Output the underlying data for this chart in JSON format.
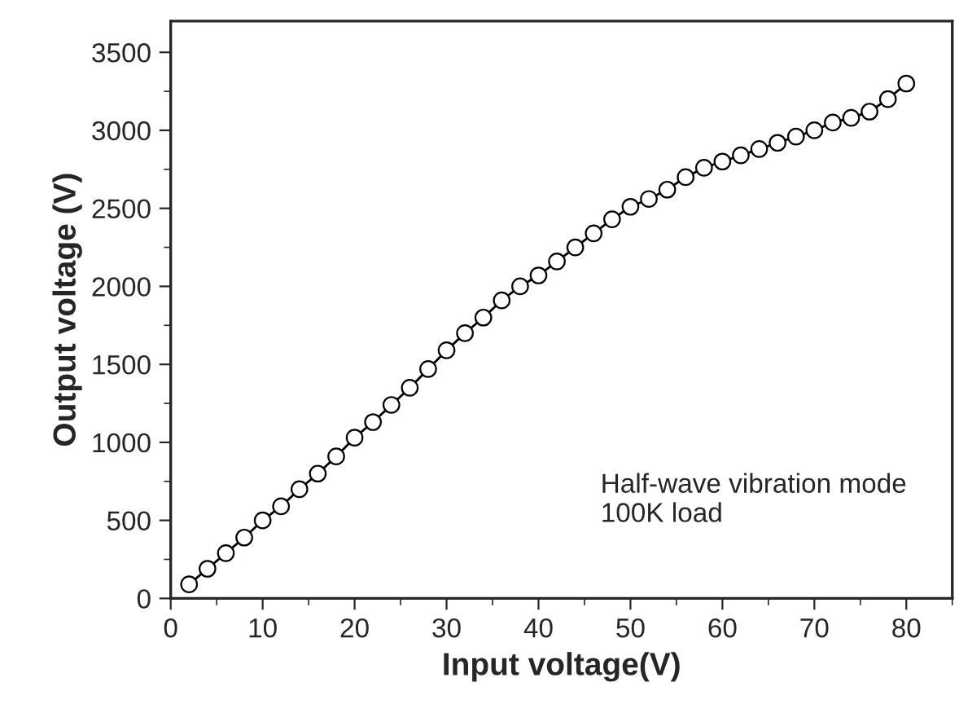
{
  "chart_data": {
    "type": "line",
    "xlabel": "Input voltage(V)",
    "ylabel": "Output voltage (V)",
    "x": [
      2,
      4,
      6,
      8,
      10,
      12,
      14,
      16,
      18,
      20,
      22,
      24,
      26,
      28,
      30,
      32,
      34,
      36,
      38,
      40,
      42,
      44,
      46,
      48,
      50,
      52,
      54,
      56,
      58,
      60,
      62,
      64,
      66,
      68,
      70,
      72,
      74,
      76,
      78,
      80
    ],
    "series": [
      {
        "color": "#000000",
        "values": [
          90,
          190,
          290,
          390,
          500,
          590,
          700,
          800,
          910,
          1030,
          1130,
          1240,
          1350,
          1470,
          1590,
          1700,
          1800,
          1910,
          2000,
          2070,
          2160,
          2250,
          2340,
          2430,
          2510,
          2560,
          2620,
          2700,
          2760,
          2800,
          2840,
          2880,
          2920,
          2960,
          3000,
          3050,
          3080,
          3120,
          3200,
          3300
        ]
      }
    ],
    "xlim": [
      0,
      85
    ],
    "xticks": [
      0,
      10,
      20,
      30,
      40,
      50,
      60,
      70,
      80
    ],
    "ylim": [
      0,
      3700
    ],
    "yticks": [
      0,
      500,
      1000,
      1500,
      2000,
      2500,
      3000,
      3500
    ],
    "marker": "circle",
    "line_style": "solid",
    "grid": false,
    "legend": false,
    "annotations": [
      "Half-wave vibration mode\n100K load"
    ]
  }
}
